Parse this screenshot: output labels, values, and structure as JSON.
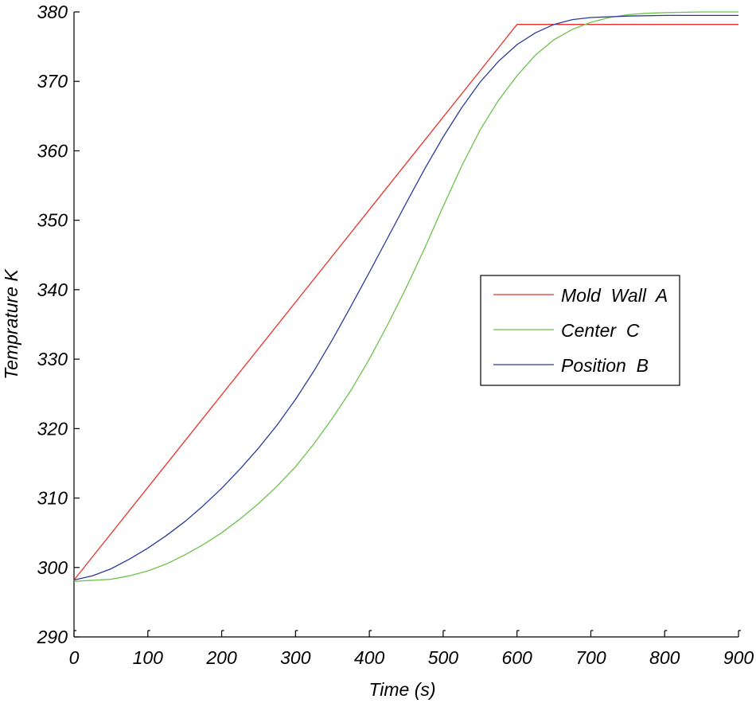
{
  "chart_data": {
    "type": "line",
    "xlabel": "Time  (s)",
    "ylabel": "Temprature K",
    "xlim": [
      0,
      900
    ],
    "ylim": [
      290,
      380
    ],
    "xticks": [
      "0",
      "100",
      "200",
      "300",
      "400",
      "500",
      "600",
      "700",
      "800",
      "900"
    ],
    "yticks": [
      "290",
      "300",
      "310",
      "320",
      "330",
      "340",
      "350",
      "360",
      "370",
      "380"
    ],
    "grid": false,
    "legend_position": "center-right",
    "series": [
      {
        "name": "Mold  Wall  A",
        "color": "#e8312a",
        "x": [
          0,
          600,
          900
        ],
        "y": [
          298.2,
          378.2,
          378.2
        ]
      },
      {
        "name": "Center  C",
        "color": "#6cc24a",
        "x": [
          0,
          50,
          75,
          100,
          125,
          150,
          175,
          200,
          225,
          250,
          275,
          300,
          325,
          350,
          375,
          400,
          425,
          450,
          475,
          500,
          525,
          550,
          575,
          600,
          625,
          650,
          675,
          700,
          725,
          750,
          775,
          800,
          850,
          900
        ],
        "y": [
          298.0,
          298.3,
          298.8,
          299.5,
          300.5,
          301.8,
          303.3,
          305.0,
          307.0,
          309.2,
          311.7,
          314.5,
          317.8,
          321.5,
          325.5,
          330.0,
          335.0,
          340.3,
          346.0,
          352.0,
          357.8,
          363.0,
          367.3,
          370.8,
          373.8,
          376.0,
          377.5,
          378.5,
          379.2,
          379.6,
          379.8,
          379.9,
          380.0,
          380.0
        ]
      },
      {
        "name": "Position  B",
        "color": "#2b3a9a",
        "x": [
          0,
          25,
          50,
          75,
          100,
          125,
          150,
          175,
          200,
          225,
          250,
          275,
          300,
          325,
          350,
          375,
          400,
          425,
          450,
          475,
          500,
          525,
          550,
          575,
          600,
          625,
          650,
          675,
          700,
          750,
          800,
          850,
          900
        ],
        "y": [
          298.2,
          298.8,
          299.8,
          301.2,
          302.8,
          304.6,
          306.6,
          308.9,
          311.4,
          314.2,
          317.2,
          320.5,
          324.2,
          328.3,
          332.8,
          337.6,
          342.5,
          347.5,
          352.5,
          357.4,
          362.0,
          366.2,
          369.9,
          372.9,
          375.3,
          377.0,
          378.2,
          378.9,
          379.2,
          379.4,
          379.5,
          379.5,
          379.5
        ]
      }
    ]
  }
}
